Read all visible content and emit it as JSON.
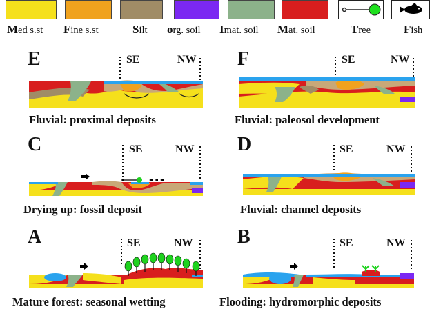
{
  "legend": [
    {
      "initial": "M",
      "rest": "ed s.st",
      "color": "#f5e01c"
    },
    {
      "initial": "F",
      "rest": "ine s.st",
      "color": "#f0a21e"
    },
    {
      "initial": "S",
      "rest": "ilt",
      "color": "#a08c66"
    },
    {
      "initial": "o",
      "rest": "rg. soil",
      "color": "#7b28f2"
    },
    {
      "initial": "I",
      "rest": "mat. soil",
      "color": "#8cb28a"
    },
    {
      "initial": "M",
      "rest": "at. soil",
      "color": "#d81e1e"
    },
    {
      "initial": "T",
      "rest": "ree",
      "icon": "tree-icon",
      "color": "#1ee01e"
    },
    {
      "initial": "F",
      "rest": "ish",
      "icon": "fish-icon",
      "color": "#000000"
    }
  ],
  "colors": {
    "water": "#2aa3ee",
    "tan": "#c8a878",
    "green": "#1fd21f"
  },
  "direction_labels": {
    "left": "SE",
    "right": "NW"
  },
  "panels": [
    {
      "id": "E",
      "caption": "Fluvial: proximal deposits"
    },
    {
      "id": "F",
      "caption": "Fluvial: paleosol development"
    },
    {
      "id": "C",
      "caption": "Drying up: fossil deposit"
    },
    {
      "id": "D",
      "caption": "Fluvial: channel deposits"
    },
    {
      "id": "A",
      "caption": "Mature forest: seasonal wetting"
    },
    {
      "id": "B",
      "caption": "Flooding: hydromorphic deposits"
    }
  ]
}
